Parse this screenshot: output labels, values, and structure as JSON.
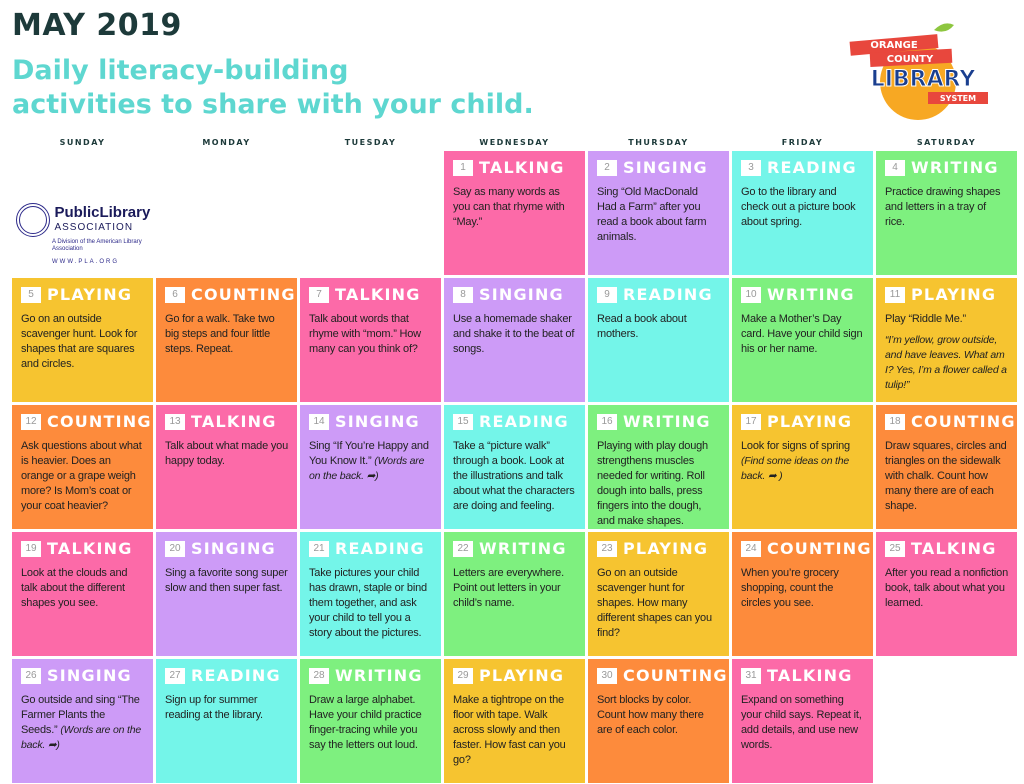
{
  "header": {
    "title": "MAY 2019",
    "subtitle_1": "Daily literacy-building",
    "subtitle_2": "activities to share with your child."
  },
  "logo": {
    "line1": "ORANGE",
    "line2": "COUNTY",
    "line3": "LIBRARY",
    "line4": "SYSTEM"
  },
  "pla": {
    "name1": "PublicLibrary",
    "name2": "ASSOCIATION",
    "division": "A Division of the American Library Association",
    "url": "WWW.PLA.ORG"
  },
  "days_of_week": [
    "SUNDAY",
    "MONDAY",
    "TUESDAY",
    "WEDNESDAY",
    "THURSDAY",
    "FRIDAY",
    "SATURDAY"
  ],
  "colors": {
    "TALKING": "#fc6aa8",
    "SINGING": "#cd9bf7",
    "READING": "#74f5e9",
    "WRITING": "#7ef07f",
    "PLAYING": "#f6c430",
    "COUNTING": "#fd8b3c"
  },
  "days": [
    {
      "day": "1",
      "activity": "TALKING",
      "text": "Say as many words as you can that rhyme with “May.”"
    },
    {
      "day": "2",
      "activity": "SINGING",
      "text": "Sing “Old MacDonald Had a Farm” after you read a book about farm animals."
    },
    {
      "day": "3",
      "activity": "READING",
      "text": "Go to the library and check out a picture book about spring."
    },
    {
      "day": "4",
      "activity": "WRITING",
      "text": "Practice drawing shapes and letters in a tray of rice."
    },
    {
      "day": "5",
      "activity": "PLAYING",
      "text": "Go on an outside scavenger hunt. Look for shapes that are squares and circles."
    },
    {
      "day": "6",
      "activity": "COUNTING",
      "text": "Go for a walk. Take two big steps and four little steps. Repeat."
    },
    {
      "day": "7",
      "activity": "TALKING",
      "text": "Talk about words that rhyme with “mom.” How many can you think of?"
    },
    {
      "day": "8",
      "activity": "SINGING",
      "text": "Use a homemade shaker and shake it to the beat of songs."
    },
    {
      "day": "9",
      "activity": "READING",
      "text": "Read a book about mothers."
    },
    {
      "day": "10",
      "activity": "WRITING",
      "text": "Make a Mother’s Day card. Have your child sign his or her name."
    },
    {
      "day": "11",
      "activity": "PLAYING",
      "text": "Play “Riddle Me.”",
      "note": "“I’m yellow, grow outside, and have leaves. What am I? Yes, I’m a flower called a tulip!”"
    },
    {
      "day": "12",
      "activity": "COUNTING",
      "text": "Ask questions about what is heavier. Does an orange or a grape weigh more? Is Mom’s coat or your coat heavier?"
    },
    {
      "day": "13",
      "activity": "TALKING",
      "text": "Talk about what made you happy today."
    },
    {
      "day": "14",
      "activity": "SINGING",
      "text": "Sing “If You’re Happy and You Know It.”",
      "note": "(Words are on the back. ➦)"
    },
    {
      "day": "15",
      "activity": "READING",
      "text": "Take a “picture walk” through a book. Look at the illustrations and talk about what the characters are doing and feeling."
    },
    {
      "day": "16",
      "activity": "WRITING",
      "text": "Playing with play dough strengthens muscles needed for writing. Roll dough into balls, press fingers into the dough, and make shapes."
    },
    {
      "day": "17",
      "activity": "PLAYING",
      "text": "Look for signs of spring",
      "note": "(Find some ideas on the back. ➦ )"
    },
    {
      "day": "18",
      "activity": "COUNTING",
      "text": "Draw squares, circles and triangles on the sidewalk with chalk. Count how many there are of each shape."
    },
    {
      "day": "19",
      "activity": "TALKING",
      "text": "Look at the clouds and talk about the different shapes you see."
    },
    {
      "day": "20",
      "activity": "SINGING",
      "text": "Sing a favorite song super slow and then super fast."
    },
    {
      "day": "21",
      "activity": "READING",
      "text": "Take pictures your child has drawn, staple or bind them together, and ask your child to tell you a story about the pictures."
    },
    {
      "day": "22",
      "activity": "WRITING",
      "text": "Letters are everywhere. Point out letters in your child’s name."
    },
    {
      "day": "23",
      "activity": "PLAYING",
      "text": "Go on an outside scavenger hunt for shapes. How many different shapes can you find?"
    },
    {
      "day": "24",
      "activity": "COUNTING",
      "text": "When you’re grocery shopping, count the circles you see."
    },
    {
      "day": "25",
      "activity": "TALKING",
      "text": "After you read a nonfiction book, talk about what you learned."
    },
    {
      "day": "26",
      "activity": "SINGING",
      "text": "Go outside and sing “The Farmer Plants the Seeds.”",
      "note": "(Words are on the back. ➦)"
    },
    {
      "day": "27",
      "activity": "READING",
      "text": "Sign up for summer reading at the library."
    },
    {
      "day": "28",
      "activity": "WRITING",
      "text": "Draw a large alphabet. Have your child practice finger-tracing while you say the letters out loud."
    },
    {
      "day": "29",
      "activity": "PLAYING",
      "text": "Make a tightrope on the floor with tape. Walk across slowly and then faster. How fast can you go?"
    },
    {
      "day": "30",
      "activity": "COUNTING",
      "text": "Sort blocks by color. Count how many there are of each color."
    },
    {
      "day": "31",
      "activity": "TALKING",
      "text": "Expand on something your child says. Repeat it, add details, and use new words."
    }
  ]
}
